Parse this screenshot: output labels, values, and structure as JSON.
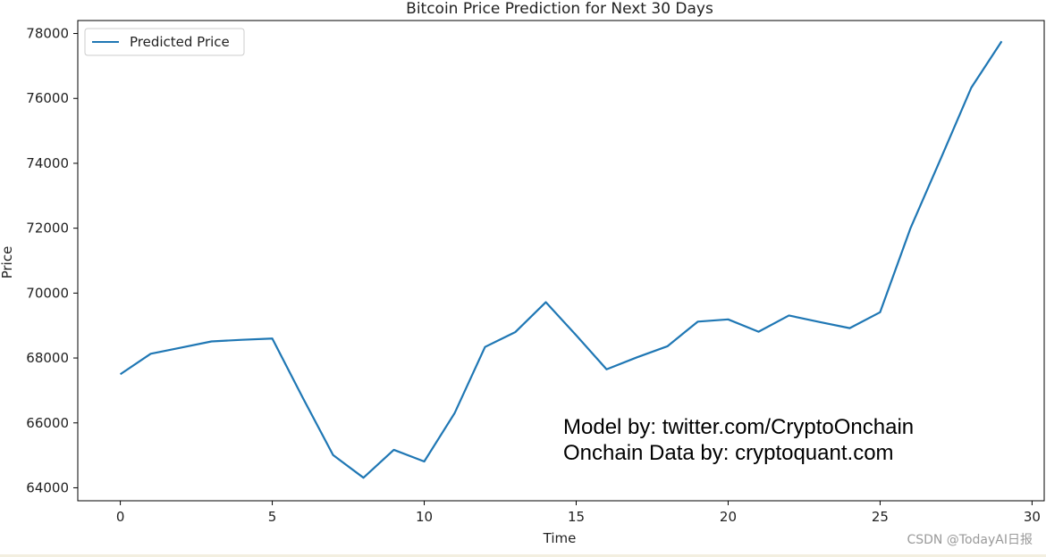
{
  "chart_data": {
    "type": "line",
    "title": "Bitcoin Price Prediction for Next 30 Days",
    "xlabel": "Time",
    "ylabel": "Price",
    "xlim": [
      -1.4,
      30.4
    ],
    "ylim": [
      63600,
      78400
    ],
    "xticks": [
      0,
      5,
      10,
      15,
      20,
      25,
      30
    ],
    "yticks": [
      64000,
      66000,
      68000,
      70000,
      72000,
      74000,
      76000,
      78000
    ],
    "grid": false,
    "legend_position": "top-left",
    "series": [
      {
        "name": "Predicted Price",
        "color": "#1f77b4",
        "x": [
          0,
          1,
          2,
          3,
          4,
          5,
          6,
          7,
          8,
          9,
          10,
          11,
          12,
          13,
          14,
          15,
          16,
          17,
          18,
          19,
          20,
          21,
          22,
          23,
          24,
          25,
          26,
          27,
          28,
          29
        ],
        "values": [
          67500,
          68130,
          68320,
          68510,
          68560,
          68600,
          66780,
          65010,
          64310,
          65170,
          64810,
          66300,
          68340,
          68800,
          69720,
          68700,
          67650,
          68020,
          68360,
          69120,
          69190,
          68810,
          69310,
          69110,
          68920,
          69410,
          72000,
          74150,
          76330,
          77760
        ]
      }
    ],
    "annotation": {
      "line1": "Model by: twitter.com/CryptoOnchain",
      "line2": "Onchain Data by: cryptoquant.com"
    }
  },
  "watermark": "CSDN @TodayAI日报"
}
